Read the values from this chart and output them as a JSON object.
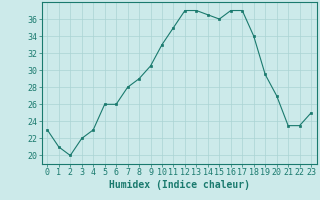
{
  "x": [
    0,
    1,
    2,
    3,
    4,
    5,
    6,
    7,
    8,
    9,
    10,
    11,
    12,
    13,
    14,
    15,
    16,
    17,
    18,
    19,
    20,
    21,
    22,
    23
  ],
  "y": [
    23,
    21,
    20,
    22,
    23,
    26,
    26,
    28,
    29,
    30.5,
    33,
    35,
    37,
    37,
    36.5,
    36,
    37,
    37,
    34,
    29.5,
    27,
    23.5,
    23.5,
    25
  ],
  "line_color": "#1a7a6e",
  "marker": "s",
  "marker_size": 2,
  "bg_color": "#cceaea",
  "grid_color": "#aad4d4",
  "xlabel": "Humidex (Indice chaleur)",
  "xlim": [
    -0.5,
    23.5
  ],
  "ylim": [
    19,
    38
  ],
  "yticks": [
    20,
    22,
    24,
    26,
    28,
    30,
    32,
    34,
    36
  ],
  "xticks": [
    0,
    1,
    2,
    3,
    4,
    5,
    6,
    7,
    8,
    9,
    10,
    11,
    12,
    13,
    14,
    15,
    16,
    17,
    18,
    19,
    20,
    21,
    22,
    23
  ],
  "tick_color": "#1a7a6e",
  "label_fontsize": 7,
  "tick_fontsize": 6,
  "axis_color": "#1a7a6e"
}
